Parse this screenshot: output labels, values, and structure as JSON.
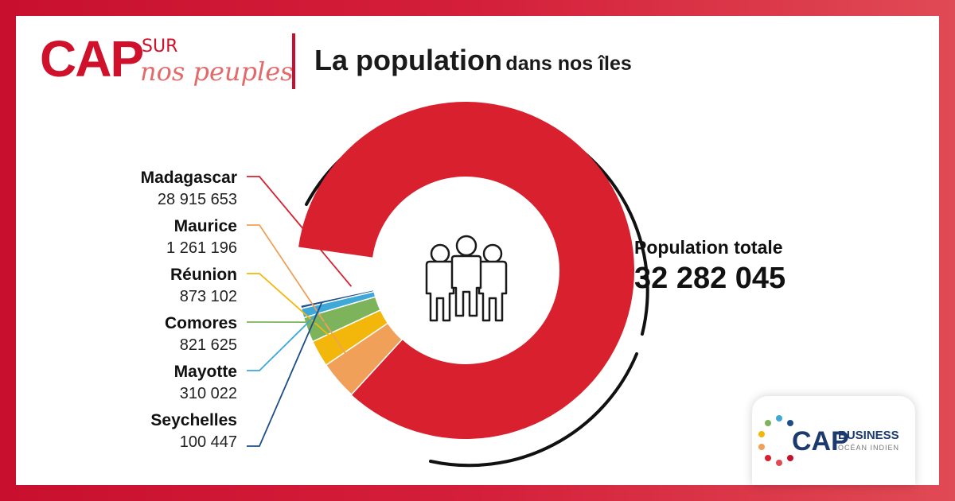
{
  "header": {
    "logo_cap": "CAP",
    "logo_sur": "SUR",
    "logo_nos": "nos peuples",
    "title_main": "La population",
    "title_rest": "dans nos îles"
  },
  "total": {
    "label": "Population totale",
    "value": "32 282 045"
  },
  "badge": {
    "cap": "CAP",
    "business": "BUSINESS",
    "sub": "OCÉAN INDIEN"
  },
  "colors": {
    "accent": "#d0112b",
    "Madagascar": "#d8202e",
    "Maurice": "#f0a058",
    "Réunion": "#f2b70a",
    "Comores": "#7db35a",
    "Mayotte": "#3ea8d8",
    "Seychelles": "#1d4e8a"
  },
  "chart_data": {
    "type": "pie",
    "categories": [
      "Madagascar",
      "Maurice",
      "Réunion",
      "Comores",
      "Mayotte",
      "Seychelles"
    ],
    "values": [
      28915653,
      1261196,
      873102,
      821625,
      310022,
      100447
    ],
    "value_labels": [
      "28 915 653",
      "1 261 196",
      "873 102",
      "821 625",
      "310 022",
      "100 447"
    ]
  }
}
